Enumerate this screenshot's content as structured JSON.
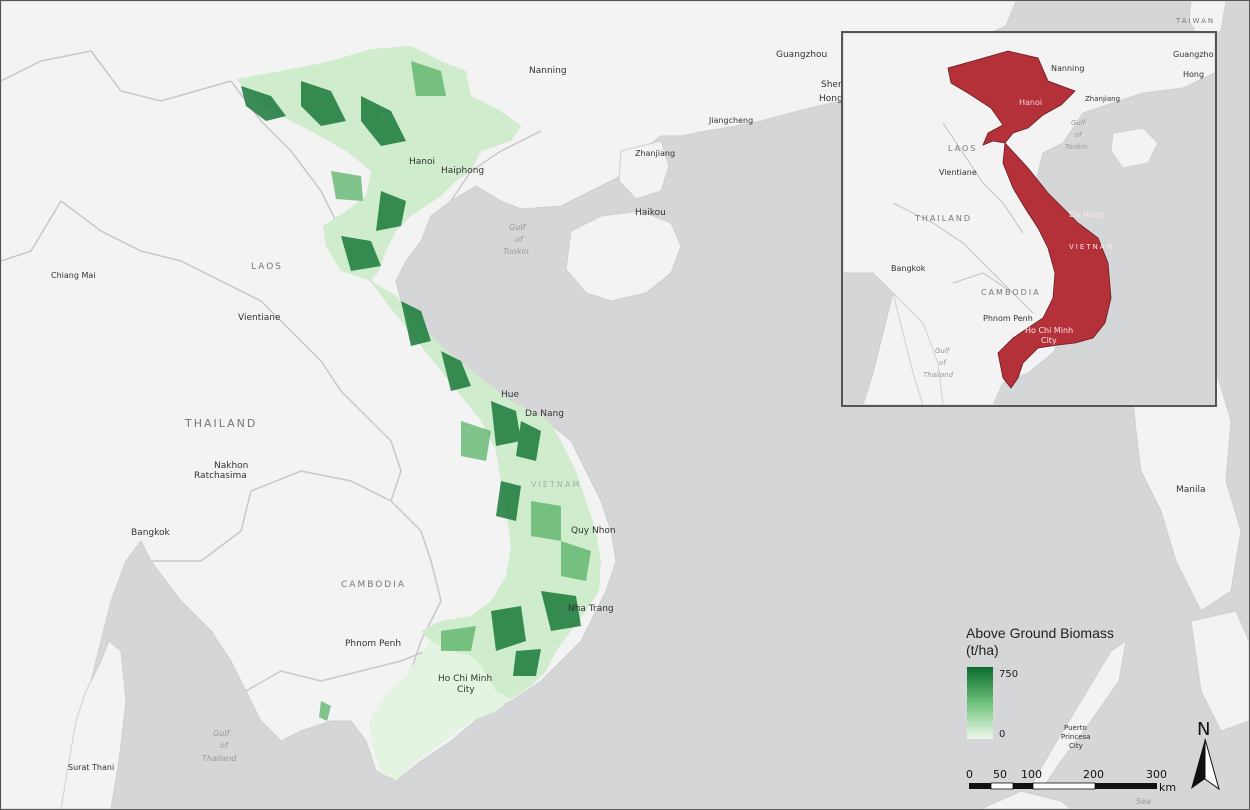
{
  "map": {
    "countries": {
      "laos": "LAOS",
      "thailand": "THAILAND",
      "cambodia": "CAMBODIA",
      "taiwan": "TAIWAN"
    },
    "cities": {
      "nanning": "Nanning",
      "guangzhou": "Guangzhou",
      "shenzhen": "Shen",
      "hongkong": "Hong",
      "jiangcheng": "Jiangcheng",
      "zhanjiang": "Zhanjiang",
      "haikou": "Haikou",
      "hanoi": "Hanoi",
      "haiphong": "Haiphong",
      "chiangmai": "Chiang Mai",
      "vientiane": "Vientiane",
      "hue": "Hue",
      "danang": "Da Nang",
      "nakhon_line1": "Nakhon",
      "nakhon_line2": "Ratchasima",
      "quynhon": "Quy Nhon",
      "bangkok": "Bangkok",
      "nhatrang": "Nha Trang",
      "phnompenh": "Phnom Penh",
      "hcmc_line1": "Ho Chi Minh",
      "hcmc_line2": "City",
      "suratthani": "Surat Thani",
      "manila": "Manila",
      "puerto_line1": "Puerto",
      "puerto_line2": "Princesa",
      "puerto_line3": "City",
      "vietnam": "VIETNAM"
    },
    "water": {
      "gulf_tonkin": [
        "Gulf",
        "of",
        "Tonkin"
      ],
      "gulf_thailand": [
        "Gulf",
        "of",
        "Thailand"
      ],
      "sea": "Sea"
    }
  },
  "inset": {
    "cities": {
      "nanning": "Nanning",
      "guangzhou": "Guangzho",
      "hong": "Hong",
      "zhanjiang": "Zhanjiang",
      "hanoi": "Hanoi",
      "laos": "LAOS",
      "vientiane": "Vientiane",
      "thailand": "THAILAND",
      "danang": "Da Nang",
      "vietnam": "VIETNAM",
      "bangkok": "Bangkok",
      "cambodia": "CAMBODIA",
      "phnompenh": "Phnom Penh",
      "hcmc_line1": "Ho Chi Minh",
      "hcmc_line2": "City"
    },
    "water": {
      "gulf_tonkin": [
        "Gulf",
        "of",
        "Tonkin"
      ],
      "gulf_thailand": [
        "Gulf",
        "of",
        "Thailand"
      ]
    },
    "highlight_color": "#b5313a"
  },
  "legend": {
    "title": "Above Ground Biomass (t/ha)",
    "max_label": "750",
    "min_label": "0",
    "color_high": "#0b6b2e",
    "color_low": "#eef8ec"
  },
  "scalebar": {
    "labels": [
      "0",
      "50",
      "100",
      "200",
      "300"
    ],
    "unit": "km"
  },
  "north_arrow": {
    "label": "N"
  },
  "colors": {
    "ocean": "#d4d6d7",
    "land": "#f3f3f3",
    "border": "#c8c8c8",
    "forest_dark": "#1a7a3a",
    "forest_light": "#cfeccd"
  }
}
